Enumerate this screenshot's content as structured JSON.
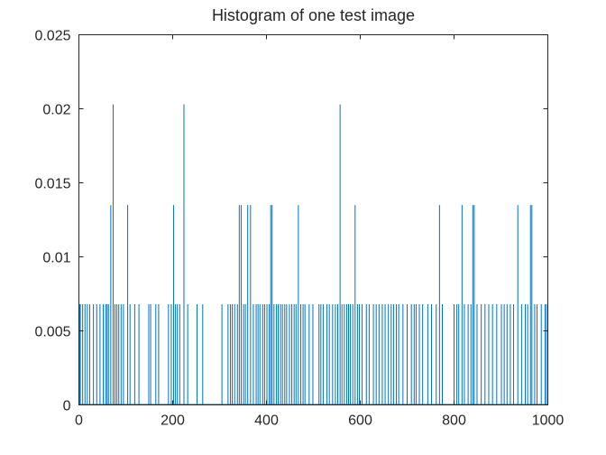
{
  "chart_data": {
    "type": "bar",
    "title": "Histogram of one test image",
    "xlabel": "",
    "ylabel": "",
    "xlim": [
      0,
      1000
    ],
    "ylim": [
      0,
      0.025
    ],
    "xticks": [
      0,
      200,
      400,
      600,
      800,
      1000
    ],
    "xtick_labels": [
      "0",
      "200",
      "400",
      "600",
      "800",
      "1000"
    ],
    "yticks": [
      0,
      0.005,
      0.01,
      0.015,
      0.02,
      0.025
    ],
    "ytick_labels": [
      "0",
      "0.005",
      "0.01",
      "0.015",
      "0.02",
      "0.025"
    ],
    "grid": false,
    "legend": "none",
    "series": [
      {
        "color": "#0072BD",
        "x": [
          1,
          3,
          8,
          13,
          18,
          23,
          31,
          38,
          45,
          52,
          57,
          60,
          63,
          68,
          73,
          77,
          81,
          85,
          90,
          95,
          104,
          109,
          119,
          128,
          149,
          153,
          164,
          170,
          191,
          197,
          202,
          206,
          210,
          215,
          224,
          232,
          252,
          264,
          305,
          318,
          323,
          327,
          332,
          338,
          342,
          346,
          351,
          355,
          360,
          366,
          372,
          378,
          382,
          386,
          392,
          396,
          401,
          406,
          409,
          412,
          416,
          421,
          425,
          430,
          434,
          439,
          443,
          449,
          454,
          459,
          463,
          468,
          473,
          478,
          482,
          491,
          499,
          512,
          516,
          521,
          529,
          534,
          541,
          547,
          552,
          557,
          561,
          566,
          571,
          575,
          579,
          584,
          589,
          594,
          598,
          604,
          613,
          619,
          628,
          634,
          640,
          647,
          653,
          660,
          666,
          671,
          677,
          682,
          691,
          700,
          709,
          715,
          719,
          726,
          733,
          744,
          752,
          762,
          769,
          775,
          800,
          806,
          810,
          817,
          822,
          830,
          836,
          840,
          843,
          849,
          858,
          866,
          874,
          882,
          891,
          901,
          907,
          913,
          920,
          927,
          936,
          944,
          952,
          957,
          963,
          966,
          972,
          977,
          986,
          994,
          997
        ],
        "values": [
          0.0068,
          0.0068,
          0.0068,
          0.0068,
          0.0068,
          0.0068,
          0.0068,
          0.0068,
          0.0068,
          0.0068,
          0.0068,
          0.0068,
          0.0068,
          0.0135,
          0.0203,
          0.0068,
          0.0068,
          0.0068,
          0.0068,
          0.0068,
          0.0135,
          0.0068,
          0.0068,
          0.0068,
          0.0068,
          0.0068,
          0.0068,
          0.0068,
          0.0068,
          0.0068,
          0.0135,
          0.0068,
          0.0068,
          0.0068,
          0.0203,
          0.0068,
          0.0068,
          0.0068,
          0.0068,
          0.0068,
          0.0068,
          0.0068,
          0.0068,
          0.0068,
          0.0135,
          0.0135,
          0.0068,
          0.0068,
          0.0135,
          0.0135,
          0.0068,
          0.0068,
          0.0068,
          0.0068,
          0.0068,
          0.0068,
          0.0068,
          0.0068,
          0.0135,
          0.0135,
          0.0068,
          0.0068,
          0.0068,
          0.0068,
          0.0068,
          0.0068,
          0.0068,
          0.0068,
          0.0068,
          0.0068,
          0.0068,
          0.0135,
          0.0068,
          0.0068,
          0.0068,
          0.0068,
          0.0068,
          0.0068,
          0.0068,
          0.0068,
          0.0068,
          0.0068,
          0.0068,
          0.0068,
          0.0068,
          0.0203,
          0.0068,
          0.0068,
          0.0068,
          0.0068,
          0.0068,
          0.0068,
          0.0135,
          0.0068,
          0.0068,
          0.0068,
          0.0068,
          0.0068,
          0.0068,
          0.0068,
          0.0068,
          0.0068,
          0.0068,
          0.0068,
          0.0068,
          0.0068,
          0.0068,
          0.0068,
          0.0068,
          0.0068,
          0.0068,
          0.0068,
          0.0068,
          0.0068,
          0.0068,
          0.0068,
          0.0068,
          0.0068,
          0.0135,
          0.0068,
          0.0068,
          0.0068,
          0.0068,
          0.0135,
          0.0068,
          0.0068,
          0.0068,
          0.0135,
          0.0135,
          0.0068,
          0.0068,
          0.0068,
          0.0068,
          0.0068,
          0.0068,
          0.0068,
          0.0068,
          0.0068,
          0.0068,
          0.0068,
          0.0135,
          0.0068,
          0.0068,
          0.0068,
          0.0135,
          0.0135,
          0.0068,
          0.0068,
          0.0068,
          0.0068,
          0.0068
        ]
      }
    ]
  }
}
